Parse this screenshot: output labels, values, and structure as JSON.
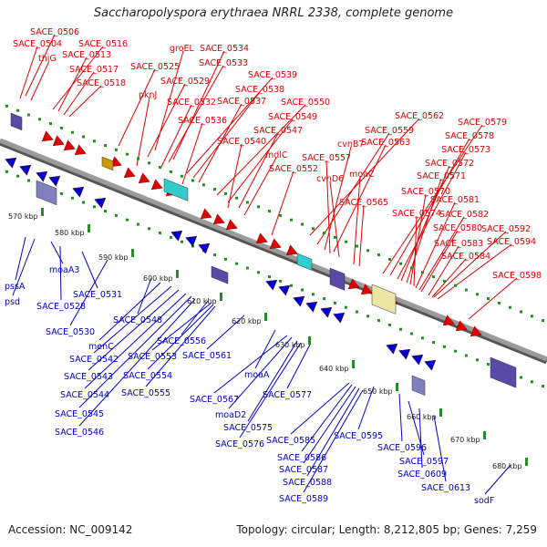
{
  "title": "Saccharopolyspora erythraea NRRL 2338, complete genome",
  "accession": "Accession: NC_009142",
  "topology": "Topology: circular; Length: 8,212,805 bp; Genes: 7,259",
  "colors": {
    "forward": "#e00000",
    "reverse": "#0000cc",
    "backbone": "#9a9a9a",
    "ruler": "#2a8a2a"
  },
  "ruler_ticks": [
    "570 kbp",
    "580 kbp",
    "590 kbp",
    "600 kbp",
    "610 kbp",
    "620 kbp",
    "630 kbp",
    "640 kbp",
    "650 kbp",
    "660 kbp",
    "670 kbp",
    "680 kbp"
  ],
  "forward_genes": [
    "SACE_0506",
    "SACE_0504",
    "thiG",
    "SACE_0516",
    "SACE_0513",
    "SACE_0517",
    "SACE_0518",
    "groEL",
    "SACE_0534",
    "SACE_0525",
    "SACE_0533",
    "SACE_0529",
    "pknJ",
    "SACE_0539",
    "SACE_0538",
    "SACE_0532",
    "SACE_0537",
    "SACE_0550",
    "SACE_0536",
    "SACE_0549",
    "SACE_0547",
    "SACE_0540",
    "mdlC",
    "SACE_0552",
    "SACE_0562",
    "SACE_0559",
    "cvnB7",
    "SACE_0563",
    "SACE_0557",
    "cvnD6",
    "moaC",
    "SACE_0565",
    "SACE_0579",
    "SACE_0578",
    "SACE_0573",
    "SACE_0572",
    "SACE_0571",
    "SACE_0570",
    "SACE_0574",
    "SACE_0581",
    "SACE_0582",
    "SACE_0580",
    "SACE_0592",
    "SACE_0594",
    "SACE_0583",
    "SACE_0584",
    "SACE_0598"
  ],
  "reverse_genes": [
    "pssA",
    "psd",
    "moaA3",
    "SACE_0528",
    "SACE_0531",
    "SACE_0530",
    "SACE_0548",
    "menC",
    "SACE_0542",
    "SACE_0543",
    "SACE_0544",
    "SACE_0545",
    "SACE_0546",
    "SACE_0556",
    "SACE_0553",
    "SACE_0554",
    "SACE_0555",
    "SACE_0561",
    "moaA",
    "moaD2",
    "SACE_0567",
    "SACE_0577",
    "SACE_0575",
    "SACE_0576",
    "SACE_0585",
    "SACE_0586",
    "SACE_0587",
    "SACE_0588",
    "SACE_0589",
    "SACE_0595",
    "SACE_0596",
    "SACE_0597",
    "SACE_0609",
    "SACE_0613",
    "sodF"
  ]
}
